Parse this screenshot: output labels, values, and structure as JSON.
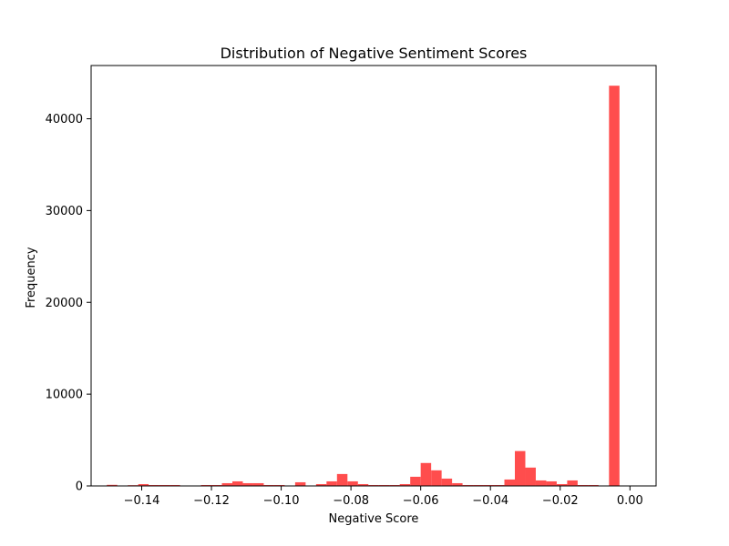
{
  "chart_data": {
    "type": "bar",
    "title": "Distribution of Negative Sentiment Scores",
    "xlabel": "Negative Score",
    "ylabel": "Frequency",
    "xlim": [
      -0.1545,
      0.0075
    ],
    "ylim": [
      0,
      45800
    ],
    "bar_color": "#ff4d4d",
    "grid": false,
    "legend": "none",
    "x_ticks": [
      -0.14,
      -0.12,
      -0.1,
      -0.08,
      -0.06,
      -0.04,
      -0.02,
      0.0
    ],
    "x_tick_labels": [
      "−0.14",
      "−0.12",
      "−0.10",
      "−0.08",
      "−0.06",
      "−0.04",
      "−0.02",
      "0.00"
    ],
    "y_ticks": [
      0,
      10000,
      20000,
      30000,
      40000
    ],
    "y_tick_labels": [
      "0",
      "10000",
      "20000",
      "30000",
      "40000"
    ],
    "bins": {
      "start": -0.15,
      "width": 0.003,
      "counts": [
        120,
        0,
        80,
        200,
        100,
        100,
        100,
        0,
        0,
        100,
        100,
        300,
        500,
        300,
        300,
        100,
        100,
        0,
        400,
        0,
        200,
        500,
        1300,
        500,
        200,
        100,
        100,
        100,
        200,
        1000,
        2500,
        1700,
        800,
        300,
        100,
        100,
        100,
        100,
        700,
        3800,
        2000,
        600,
        500,
        200,
        600,
        100,
        100,
        0,
        43600
      ]
    }
  }
}
